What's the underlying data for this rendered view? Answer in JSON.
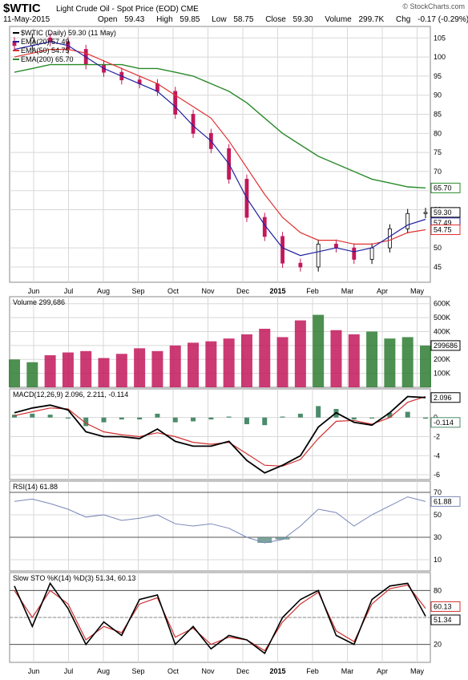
{
  "header": {
    "symbol": "$WTIC",
    "description": "Light Crude Oil - Spot Price (EOD)",
    "exchange": "CME",
    "date": "11-May-2015",
    "open_label": "Open",
    "open": "59.43",
    "high_label": "High",
    "high": "59.85",
    "low_label": "Low",
    "low": "58.75",
    "close_label": "Close",
    "close": "59.30",
    "volume_label": "Volume",
    "volume": "299.7K",
    "chg_label": "Chg",
    "chg": "-0.17 (-0.29%)",
    "brand": "© StockCharts.com"
  },
  "colors": {
    "ema20": "#1f1fa0",
    "ema50": "#e03030",
    "ema200": "#2a8a2a",
    "up": "#2e7d32",
    "down": "#c2185b",
    "grid": "#d8d8d8",
    "macd_line": "#000000",
    "signal_line": "#d03030",
    "hist": "#4b8b6b",
    "rsi_line": "#7a86b8",
    "rsi_fill": "#5b8f84",
    "sto_k": "#000000",
    "sto_d": "#d03030"
  },
  "chart_data": [
    {
      "type": "line",
      "panel": "price",
      "legend": "$WTIC (Daily) 59.30 (11 May)",
      "ylim": [
        41,
        108
      ],
      "y_ticks": [
        45,
        50,
        60,
        65,
        70,
        75,
        80,
        85,
        90,
        95,
        100,
        105
      ],
      "x_months": [
        "Jun",
        "Jul",
        "Aug",
        "Sep",
        "Oct",
        "Nov",
        "Dec",
        "2015",
        "Feb",
        "Mar",
        "Apr",
        "May"
      ],
      "x": [
        "2014-06-01",
        "2014-06-15",
        "2014-07-01",
        "2014-07-15",
        "2014-08-01",
        "2014-08-15",
        "2014-09-01",
        "2014-09-15",
        "2014-10-01",
        "2014-10-15",
        "2014-11-01",
        "2014-11-15",
        "2014-12-01",
        "2014-12-15",
        "2015-01-01",
        "2015-01-15",
        "2015-02-01",
        "2015-02-15",
        "2015-03-01",
        "2015-03-15",
        "2015-04-01",
        "2015-04-15",
        "2015-05-01",
        "2015-05-11"
      ],
      "series": [
        {
          "name": "$WTIC",
          "values": [
            103,
            105,
            104,
            102,
            98,
            96,
            94,
            93,
            91,
            85,
            80,
            76,
            68,
            58,
            53,
            46,
            45,
            51,
            50,
            47,
            50,
            55,
            59,
            59.3
          ]
        },
        {
          "name": "EMA(20) 57.49",
          "values": [
            102,
            103,
            104,
            103,
            100,
            97,
            95,
            93,
            91,
            87,
            82,
            78,
            72,
            63,
            56,
            50,
            48,
            49,
            50,
            49,
            50,
            53,
            56,
            57.49
          ]
        },
        {
          "name": "EMA(50) 54.75",
          "values": [
            100,
            101,
            102,
            102,
            101,
            99,
            97,
            95,
            93,
            90,
            87,
            84,
            78,
            71,
            64,
            58,
            54,
            52,
            52,
            51,
            51,
            52,
            54,
            54.75
          ]
        },
        {
          "name": "EMA(200) 65.70",
          "values": [
            96,
            97,
            98,
            98,
            98,
            98,
            98,
            97,
            97,
            96,
            95,
            93,
            91,
            88,
            84,
            80,
            77,
            74,
            72,
            70,
            68,
            67,
            66,
            65.7
          ]
        }
      ],
      "right_labels": [
        "65.70",
        "59.30",
        "57.49",
        "54.75"
      ]
    },
    {
      "type": "bar",
      "panel": "volume",
      "legend": "Volume 299,686",
      "ylim": [
        0,
        650000
      ],
      "y_ticks": [
        "100K",
        "200K",
        "300K",
        "400K",
        "500K",
        "600K"
      ],
      "last_label": "299686",
      "values": [
        200000,
        180000,
        230000,
        250000,
        260000,
        210000,
        240000,
        280000,
        260000,
        300000,
        320000,
        330000,
        350000,
        380000,
        420000,
        360000,
        480000,
        520000,
        410000,
        380000,
        400000,
        350000,
        360000,
        299686
      ]
    },
    {
      "type": "line",
      "panel": "macd",
      "legend": "MACD(12,26,9) 2.096, 2.211, -0.114",
      "ylim": [
        -6.5,
        3
      ],
      "y_ticks": [
        -6,
        -4,
        -2,
        0
      ],
      "right_labels": [
        "2.096",
        "-0.114"
      ],
      "series": [
        {
          "name": "MACD",
          "values": [
            0.5,
            1,
            1.3,
            0.8,
            -1.5,
            -2,
            -2,
            -2.2,
            -1.2,
            -2.5,
            -3,
            -3,
            -2.5,
            -4.5,
            -5.8,
            -5,
            -4,
            -1,
            0.5,
            -0.5,
            -0.8,
            0.5,
            2.2,
            2.096
          ]
        },
        {
          "name": "Signal",
          "values": [
            0.2,
            0.6,
            1,
            0.9,
            -0.6,
            -1.5,
            -1.8,
            -2,
            -1.6,
            -2,
            -2.6,
            -2.8,
            -2.6,
            -3.8,
            -5,
            -5.1,
            -4.4,
            -2.2,
            -0.4,
            -0.3,
            -0.7,
            0,
            1.6,
            2.211
          ]
        },
        {
          "name": "Histogram",
          "values": [
            0.3,
            0.4,
            0.3,
            -0.1,
            -0.9,
            -0.5,
            -0.2,
            -0.2,
            0.4,
            -0.5,
            -0.4,
            -0.2,
            0.1,
            -0.7,
            -0.8,
            0.1,
            0.4,
            1.2,
            0.9,
            -0.2,
            -0.1,
            0.5,
            0.6,
            -0.114
          ]
        }
      ]
    },
    {
      "type": "line",
      "panel": "rsi",
      "legend": "RSI(14) 61.88",
      "ylim": [
        0,
        80
      ],
      "y_ticks": [
        10,
        30,
        50,
        70
      ],
      "right_labels": [
        "61.88"
      ],
      "values": [
        62,
        64,
        60,
        55,
        48,
        50,
        45,
        47,
        50,
        42,
        40,
        42,
        38,
        30,
        25,
        28,
        40,
        55,
        52,
        40,
        50,
        58,
        66,
        61.88
      ]
    },
    {
      "type": "line",
      "panel": "slow_sto",
      "legend": "Slow STO %K(14) %D(3) 51.34, 60.13",
      "ylim": [
        0,
        100
      ],
      "y_ticks": [
        20,
        50,
        80
      ],
      "right_labels": [
        "60.13",
        "51.34"
      ],
      "series": [
        {
          "name": "%K",
          "values": [
            85,
            40,
            88,
            60,
            20,
            45,
            30,
            70,
            75,
            20,
            40,
            15,
            30,
            25,
            10,
            50,
            70,
            80,
            30,
            20,
            70,
            85,
            88,
            51.34
          ]
        },
        {
          "name": "%D",
          "values": [
            80,
            50,
            80,
            65,
            25,
            40,
            33,
            65,
            72,
            28,
            38,
            20,
            28,
            25,
            13,
            45,
            65,
            78,
            35,
            23,
            65,
            82,
            86,
            60.13
          ]
        }
      ]
    }
  ]
}
